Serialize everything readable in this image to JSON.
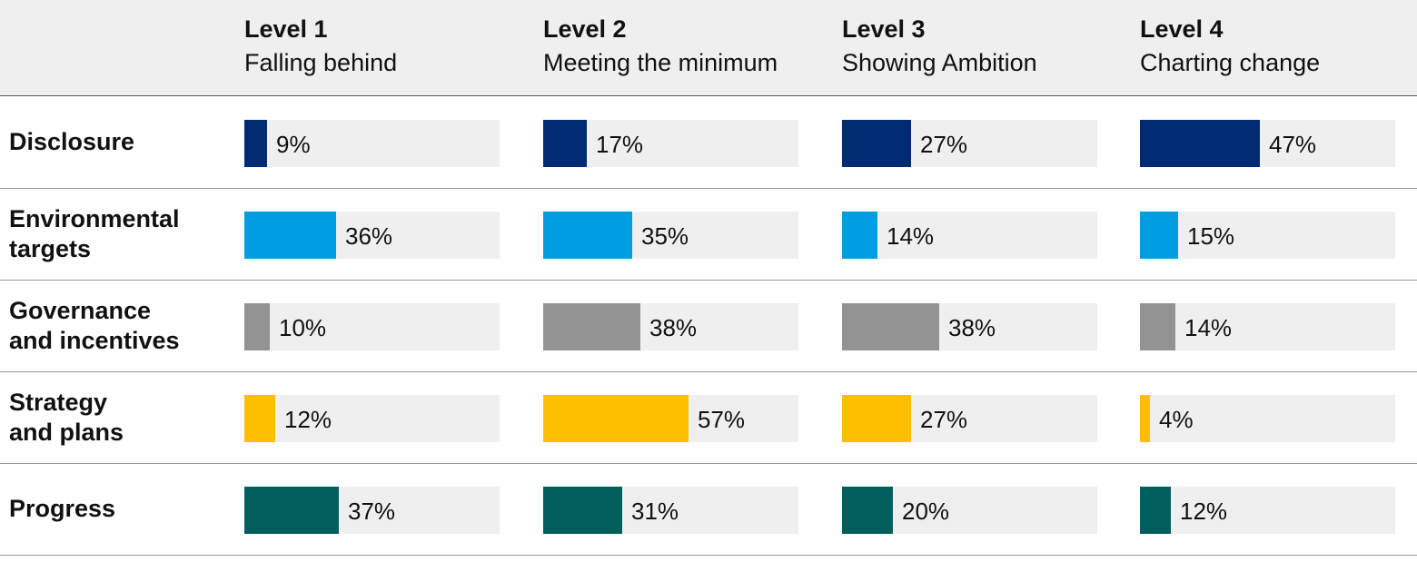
{
  "chart_data": {
    "type": "bar",
    "title": "",
    "xlabel": "",
    "ylabel": "",
    "columns": [
      {
        "level": "Level 1",
        "description": "Falling behind"
      },
      {
        "level": "Level 2",
        "description": "Meeting the minimum"
      },
      {
        "level": "Level 3",
        "description": "Showing Ambition"
      },
      {
        "level": "Level 4",
        "description": "Charting change"
      }
    ],
    "rows": [
      {
        "name": "Disclosure",
        "color": "#002b73",
        "values": [
          9,
          17,
          27,
          47
        ],
        "labels": [
          "9%",
          "17%",
          "27%",
          "47%"
        ]
      },
      {
        "name": "Environmental\ntargets",
        "color": "#009de0",
        "values": [
          36,
          35,
          14,
          15
        ],
        "labels": [
          "36%",
          "35%",
          "14%",
          "15%"
        ]
      },
      {
        "name": "Governance\nand incentives",
        "color": "#939393",
        "values": [
          10,
          38,
          38,
          14
        ],
        "labels": [
          "10%",
          "38%",
          "38%",
          "14%"
        ]
      },
      {
        "name": "Strategy\nand plans",
        "color": "#ffbf00",
        "values": [
          12,
          57,
          27,
          4
        ],
        "labels": [
          "12%",
          "57%",
          "27%",
          "4%"
        ]
      },
      {
        "name": "Progress",
        "color": "#005f5c",
        "values": [
          37,
          31,
          20,
          12
        ],
        "labels": [
          "37%",
          "31%",
          "20%",
          "12%"
        ]
      }
    ],
    "xlim": [
      0,
      100
    ],
    "grid": false,
    "legend": "none",
    "colors": {
      "header_background": "#efefef",
      "track_background": "#efefef"
    }
  }
}
